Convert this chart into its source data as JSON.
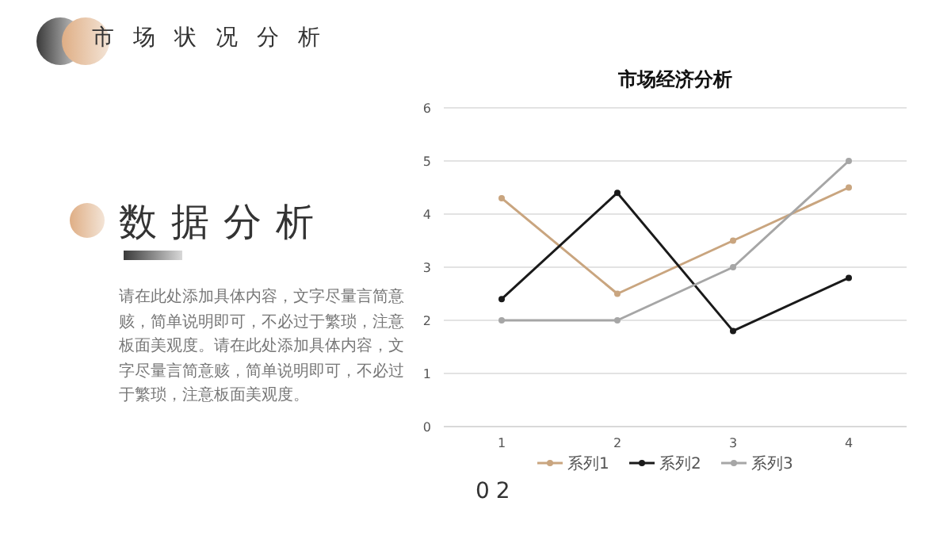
{
  "chart_data": {
    "type": "line",
    "title": "市场经济分析",
    "categories": [
      "1",
      "2",
      "3",
      "4"
    ],
    "series": [
      {
        "name": "系列1",
        "color": "#c9a57f",
        "values": [
          4.3,
          2.5,
          3.5,
          4.5
        ]
      },
      {
        "name": "系列2",
        "color": "#1a1a1a",
        "values": [
          2.4,
          4.4,
          1.8,
          2.8
        ]
      },
      {
        "name": "系列3",
        "color": "#a6a6a6",
        "values": [
          2,
          2,
          3,
          5
        ]
      }
    ],
    "ylim": [
      0,
      6
    ],
    "yticks": [
      0,
      1,
      2,
      3,
      4,
      5,
      6
    ],
    "grid": "y",
    "legend": "bottom",
    "marker": "circle",
    "line_style": "solid",
    "annotations": [
      "市场状况分析",
      "数据分析",
      "请在此处添加具体内容，文字尽量言简意赅，简单说明即可，不必过于繁琐，注意板面美观度。请在此处添加具体内容，文字尽量言简意赅，简单说明即可，不必过于繁琐，注意板面美观度。",
      "02"
    ]
  }
}
